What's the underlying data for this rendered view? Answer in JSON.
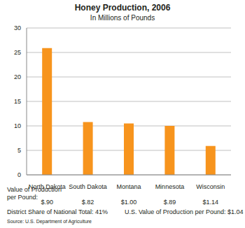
{
  "chart_data": {
    "type": "bar",
    "title": "Honey Production, 2006",
    "subtitle": "In Millions of Pounds",
    "categories": [
      "North Dakota",
      "South Dakota",
      "Montana",
      "Minnesota",
      "Wisconsin"
    ],
    "values": [
      25.9,
      10.8,
      10.5,
      10,
      5.9
    ],
    "color": "#f7941d",
    "ylim": [
      0,
      30
    ],
    "yticks": [
      0,
      5,
      10,
      15,
      20,
      25,
      30
    ],
    "grid": true,
    "value_per_pound": {
      "label": "Value of Production per Pound:",
      "values": [
        "$.90",
        "$.82",
        "$1.00",
        "$.89",
        "$1.14"
      ]
    },
    "notes": [
      "District Share of National Total: 41%",
      "U.S. Value of Production per Pound: $1.04"
    ],
    "source": "Source: U.S. Department of Agriculture"
  }
}
